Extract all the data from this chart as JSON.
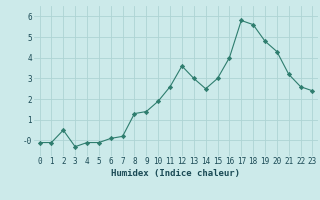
{
  "x": [
    0,
    1,
    2,
    3,
    4,
    5,
    6,
    7,
    8,
    9,
    10,
    11,
    12,
    13,
    14,
    15,
    16,
    17,
    18,
    19,
    20,
    21,
    22,
    23
  ],
  "y": [
    -0.1,
    -0.1,
    0.5,
    -0.3,
    -0.1,
    -0.1,
    0.1,
    0.2,
    1.3,
    1.4,
    1.9,
    2.6,
    3.6,
    3.0,
    2.5,
    3.0,
    4.0,
    5.8,
    5.6,
    4.8,
    4.3,
    3.2,
    2.6,
    2.4
  ],
  "line_color": "#2e7d6e",
  "marker": "D",
  "marker_size": 2.2,
  "bg_color": "#cceaea",
  "grid_color": "#aed4d4",
  "xlabel": "Humidex (Indice chaleur)",
  "ylim": [
    -0.75,
    6.5
  ],
  "xlim": [
    -0.5,
    23.5
  ],
  "yticks": [
    0,
    1,
    2,
    3,
    4,
    5,
    6
  ],
  "ytick_labels": [
    "-0",
    "1",
    "2",
    "3",
    "4",
    "5",
    "6"
  ],
  "xticks": [
    0,
    1,
    2,
    3,
    4,
    5,
    6,
    7,
    8,
    9,
    10,
    11,
    12,
    13,
    14,
    15,
    16,
    17,
    18,
    19,
    20,
    21,
    22,
    23
  ],
  "label_color": "#1a4a55",
  "tick_color": "#1a4a55",
  "font_size": 5.5,
  "xlabel_fontsize": 6.5
}
